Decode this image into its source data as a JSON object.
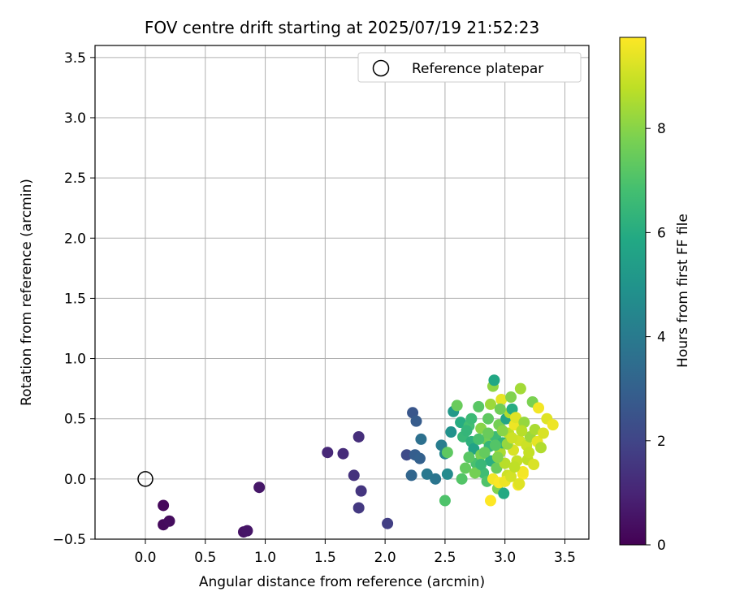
{
  "chart_data": {
    "type": "scatter",
    "title": "FOV centre drift starting at 2025/07/19 21:52:23",
    "xlabel": "Angular distance from reference (arcmin)",
    "ylabel": "Rotation from reference (arcmin)",
    "xlim": [
      -0.42,
      3.7
    ],
    "ylim": [
      -0.5,
      3.6
    ],
    "xticks": [
      0.0,
      0.5,
      1.0,
      1.5,
      2.0,
      2.5,
      3.0,
      3.5
    ],
    "xtick_labels": [
      "0.0",
      "0.5",
      "1.0",
      "1.5",
      "2.0",
      "2.5",
      "3.0",
      "3.5"
    ],
    "yticks": [
      -0.5,
      0.0,
      0.5,
      1.0,
      1.5,
      2.0,
      2.5,
      3.0,
      3.5
    ],
    "ytick_labels": [
      "−0.5",
      "0.0",
      "0.5",
      "1.0",
      "1.5",
      "2.0",
      "2.5",
      "3.0",
      "3.5"
    ],
    "grid": true,
    "legend": {
      "position": "top-right",
      "entries": [
        {
          "label": "Reference platepar",
          "marker": "open-circle"
        }
      ]
    },
    "reference_point": {
      "x": 0.0,
      "y": 0.0
    },
    "colorbar": {
      "label": "Hours from first FF file",
      "colormap": "viridis",
      "range": [
        0,
        9.75
      ],
      "ticks": [
        0,
        2,
        4,
        6,
        8
      ],
      "tick_labels": [
        "0",
        "2",
        "4",
        "6",
        "8"
      ]
    },
    "points": [
      {
        "x": 0.15,
        "y": -0.22,
        "h": 0.2
      },
      {
        "x": 0.15,
        "y": -0.38,
        "h": 0.25
      },
      {
        "x": 0.2,
        "y": -0.35,
        "h": 0.3
      },
      {
        "x": 0.82,
        "y": -0.44,
        "h": 0.5
      },
      {
        "x": 0.85,
        "y": -0.43,
        "h": 0.55
      },
      {
        "x": 0.95,
        "y": -0.07,
        "h": 0.6
      },
      {
        "x": 1.52,
        "y": 0.22,
        "h": 1.1
      },
      {
        "x": 1.65,
        "y": 0.21,
        "h": 1.2
      },
      {
        "x": 1.78,
        "y": 0.35,
        "h": 1.3
      },
      {
        "x": 1.74,
        "y": 0.03,
        "h": 1.4
      },
      {
        "x": 1.8,
        "y": -0.1,
        "h": 1.5
      },
      {
        "x": 1.78,
        "y": -0.24,
        "h": 1.6
      },
      {
        "x": 2.02,
        "y": -0.37,
        "h": 1.8
      },
      {
        "x": 2.18,
        "y": 0.2,
        "h": 2.2
      },
      {
        "x": 2.23,
        "y": 0.55,
        "h": 2.6
      },
      {
        "x": 2.26,
        "y": 0.48,
        "h": 2.8
      },
      {
        "x": 2.25,
        "y": 0.2,
        "h": 2.9
      },
      {
        "x": 2.29,
        "y": 0.17,
        "h": 3.0
      },
      {
        "x": 2.22,
        "y": 0.03,
        "h": 3.2
      },
      {
        "x": 2.3,
        "y": 0.33,
        "h": 3.6
      },
      {
        "x": 2.35,
        "y": 0.04,
        "h": 3.9
      },
      {
        "x": 2.42,
        "y": 0.0,
        "h": 3.8
      },
      {
        "x": 2.47,
        "y": 0.28,
        "h": 4.1
      },
      {
        "x": 2.5,
        "y": 0.21,
        "h": 4.5
      },
      {
        "x": 2.52,
        "y": 0.04,
        "h": 4.6
      },
      {
        "x": 2.55,
        "y": 0.39,
        "h": 4.9
      },
      {
        "x": 2.57,
        "y": 0.56,
        "h": 5.2
      },
      {
        "x": 2.5,
        "y": -0.18,
        "h": 7.0
      },
      {
        "x": 2.52,
        "y": 0.22,
        "h": 7.3
      },
      {
        "x": 2.6,
        "y": 0.61,
        "h": 7.5
      },
      {
        "x": 2.63,
        "y": 0.47,
        "h": 6.0
      },
      {
        "x": 2.65,
        "y": 0.35,
        "h": 6.5
      },
      {
        "x": 2.64,
        "y": 0.0,
        "h": 7.1
      },
      {
        "x": 2.67,
        "y": 0.09,
        "h": 7.4
      },
      {
        "x": 2.7,
        "y": 0.44,
        "h": 6.8
      },
      {
        "x": 2.72,
        "y": 0.31,
        "h": 6.2
      },
      {
        "x": 2.74,
        "y": 0.25,
        "h": 5.6
      },
      {
        "x": 2.76,
        "y": 0.13,
        "h": 6.9
      },
      {
        "x": 2.78,
        "y": 0.6,
        "h": 7.2
      },
      {
        "x": 2.8,
        "y": 0.2,
        "h": 7.8
      },
      {
        "x": 2.8,
        "y": 0.42,
        "h": 8.0
      },
      {
        "x": 2.82,
        "y": 0.05,
        "h": 6.7
      },
      {
        "x": 2.84,
        "y": 0.33,
        "h": 7.6
      },
      {
        "x": 2.85,
        "y": -0.02,
        "h": 7.0
      },
      {
        "x": 2.86,
        "y": 0.5,
        "h": 7.3
      },
      {
        "x": 2.87,
        "y": 0.27,
        "h": 6.4
      },
      {
        "x": 2.88,
        "y": 0.15,
        "h": 6.1
      },
      {
        "x": 2.88,
        "y": 0.62,
        "h": 8.3
      },
      {
        "x": 2.9,
        "y": 0.77,
        "h": 8.1
      },
      {
        "x": 2.91,
        "y": 0.82,
        "h": 5.8
      },
      {
        "x": 2.92,
        "y": 0.35,
        "h": 6.6
      },
      {
        "x": 2.93,
        "y": 0.09,
        "h": 7.5
      },
      {
        "x": 2.94,
        "y": -0.08,
        "h": 7.9
      },
      {
        "x": 2.95,
        "y": 0.45,
        "h": 7.7
      },
      {
        "x": 2.96,
        "y": 0.22,
        "h": 8.5
      },
      {
        "x": 2.97,
        "y": 0.66,
        "h": 9.4
      },
      {
        "x": 2.98,
        "y": 0.3,
        "h": 6.3
      },
      {
        "x": 2.99,
        "y": -0.12,
        "h": 5.9
      },
      {
        "x": 3.0,
        "y": 0.13,
        "h": 8.7
      },
      {
        "x": 3.01,
        "y": 0.5,
        "h": 5.7
      },
      {
        "x": 3.02,
        "y": 0.03,
        "h": 9.0
      },
      {
        "x": 3.03,
        "y": 0.38,
        "h": 8.8
      },
      {
        "x": 3.04,
        "y": 0.55,
        "h": 8.6
      },
      {
        "x": 3.05,
        "y": 0.68,
        "h": 7.9
      },
      {
        "x": 3.06,
        "y": 0.58,
        "h": 6.0
      },
      {
        "x": 3.07,
        "y": 0.24,
        "h": 9.2
      },
      {
        "x": 3.08,
        "y": 0.45,
        "h": 9.5
      },
      {
        "x": 3.09,
        "y": 0.51,
        "h": 9.3
      },
      {
        "x": 3.1,
        "y": 0.15,
        "h": 8.9
      },
      {
        "x": 3.11,
        "y": -0.05,
        "h": 9.6
      },
      {
        "x": 3.12,
        "y": 0.32,
        "h": 9.1
      },
      {
        "x": 3.13,
        "y": 0.75,
        "h": 8.4
      },
      {
        "x": 3.15,
        "y": 0.04,
        "h": 9.7
      },
      {
        "x": 3.16,
        "y": 0.47,
        "h": 8.2
      },
      {
        "x": 3.18,
        "y": 0.28,
        "h": 9.0
      },
      {
        "x": 3.19,
        "y": 0.16,
        "h": 8.8
      },
      {
        "x": 3.21,
        "y": 0.35,
        "h": 8.3
      },
      {
        "x": 3.23,
        "y": 0.64,
        "h": 7.8
      },
      {
        "x": 3.25,
        "y": 0.41,
        "h": 8.5
      },
      {
        "x": 3.27,
        "y": 0.31,
        "h": 9.4
      },
      {
        "x": 3.28,
        "y": 0.59,
        "h": 9.6
      },
      {
        "x": 3.3,
        "y": 0.26,
        "h": 8.6
      },
      {
        "x": 3.32,
        "y": 0.38,
        "h": 9.2
      },
      {
        "x": 3.35,
        "y": 0.5,
        "h": 9.3
      },
      {
        "x": 3.4,
        "y": 0.45,
        "h": 9.5
      },
      {
        "x": 2.9,
        "y": 0.0,
        "h": 9.6
      },
      {
        "x": 2.95,
        "y": -0.03,
        "h": 9.7
      },
      {
        "x": 3.0,
        "y": -0.02,
        "h": 9.5
      },
      {
        "x": 3.05,
        "y": 0.02,
        "h": 9.1
      },
      {
        "x": 3.12,
        "y": -0.04,
        "h": 9.3
      },
      {
        "x": 3.15,
        "y": 0.06,
        "h": 9.6
      },
      {
        "x": 2.88,
        "y": -0.18,
        "h": 9.8
      },
      {
        "x": 2.78,
        "y": 0.33,
        "h": 6.9
      },
      {
        "x": 2.7,
        "y": 0.18,
        "h": 7.2
      },
      {
        "x": 2.68,
        "y": 0.4,
        "h": 6.4
      },
      {
        "x": 2.75,
        "y": 0.05,
        "h": 7.7
      },
      {
        "x": 2.83,
        "y": 0.22,
        "h": 7.4
      },
      {
        "x": 2.98,
        "y": 0.4,
        "h": 8.0
      },
      {
        "x": 3.08,
        "y": 0.1,
        "h": 8.8
      },
      {
        "x": 3.2,
        "y": 0.22,
        "h": 8.9
      },
      {
        "x": 2.92,
        "y": 0.28,
        "h": 7.1
      },
      {
        "x": 2.86,
        "y": 0.38,
        "h": 7.5
      },
      {
        "x": 3.02,
        "y": 0.29,
        "h": 8.2
      },
      {
        "x": 3.14,
        "y": 0.4,
        "h": 8.7
      },
      {
        "x": 2.96,
        "y": 0.58,
        "h": 7.6
      },
      {
        "x": 2.72,
        "y": 0.5,
        "h": 6.6
      },
      {
        "x": 2.8,
        "y": 0.12,
        "h": 6.5
      },
      {
        "x": 3.06,
        "y": 0.34,
        "h": 9.0
      },
      {
        "x": 2.94,
        "y": 0.18,
        "h": 7.9
      },
      {
        "x": 3.24,
        "y": 0.12,
        "h": 9.2
      }
    ]
  }
}
